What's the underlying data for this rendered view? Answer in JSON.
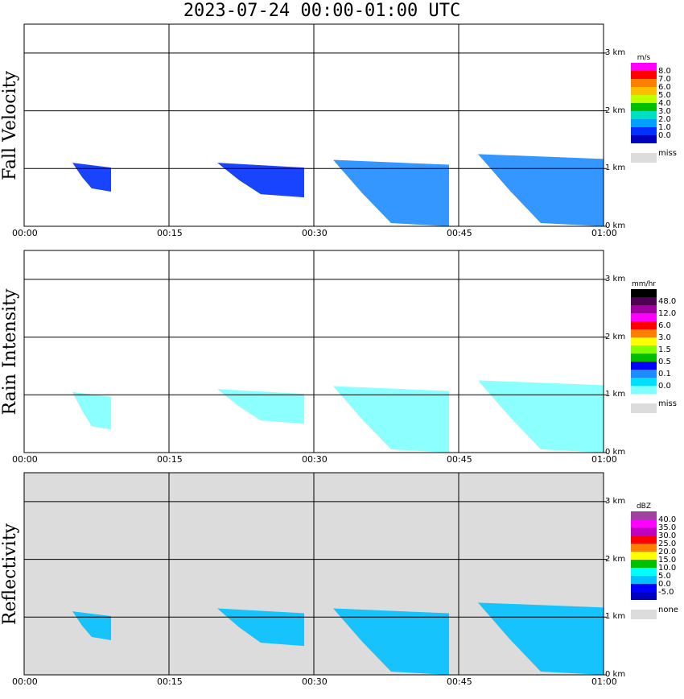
{
  "title": "2023-07-24   00:00-01:00 UTC",
  "chart_data": [
    {
      "type": "heatmap",
      "ylabel": "Fall Velocity",
      "x_ticks": [
        "00:00",
        "00:15",
        "00:30",
        "00:45",
        "01:00"
      ],
      "y_ticks": [
        "0 km",
        "1 km",
        "2 km",
        "3 km"
      ],
      "ylim_km": [
        0,
        3.5
      ],
      "grid": true,
      "background": "#ffffff",
      "legend": {
        "title": "m/s",
        "labels": [
          "8.0",
          "7.0",
          "6.0",
          "5.0",
          "4.0",
          "3.0",
          "2.0",
          "1.0",
          "0.0"
        ],
        "colors": [
          "#ff00ff",
          "#ff0000",
          "#ff7f00",
          "#ffbf00",
          "#bfff00",
          "#00bf00",
          "#00dfbf",
          "#00a0ff",
          "#0030ff",
          "#0000bf"
        ],
        "miss_label": "miss",
        "miss_color": "#dcdcdc"
      },
      "echoes": [
        {
          "t0": "00:05",
          "t1": "00:09",
          "top_km": 1.1,
          "bottom_km": 0.6,
          "color": "#0030ff"
        },
        {
          "t0": "00:20",
          "t1": "00:29",
          "top_km": 1.1,
          "bottom_km": 0.5,
          "color": "#0030ff"
        },
        {
          "t0": "00:32",
          "t1": "00:44",
          "top_km": 1.15,
          "bottom_km": 0.0,
          "color": "#1e8cff"
        },
        {
          "t0": "00:47",
          "t1": "01:00",
          "top_km": 1.25,
          "bottom_km": 0.0,
          "color": "#1e8cff"
        }
      ]
    },
    {
      "type": "heatmap",
      "ylabel": "Rain Intensity",
      "x_ticks": [
        "00:00",
        "00:15",
        "00:30",
        "00:45",
        "01:00"
      ],
      "y_ticks": [
        "0 km",
        "1 km",
        "2 km",
        "3 km"
      ],
      "ylim_km": [
        0,
        3.5
      ],
      "grid": true,
      "background": "#ffffff",
      "legend": {
        "title": "mm/hr",
        "labels": [
          "48.0",
          "12.0",
          "6.0",
          "3.0",
          "1.5",
          "0.5",
          "0.1",
          "0.0"
        ],
        "colors": [
          "#000000",
          "#500050",
          "#a000a0",
          "#ff00ff",
          "#ff0000",
          "#ff7f00",
          "#ffff00",
          "#7fff00",
          "#00bf00",
          "#0000ff",
          "#1e8cff",
          "#00dfff",
          "#7fffff"
        ],
        "miss_label": "miss",
        "miss_color": "#dcdcdc"
      },
      "echoes": [
        {
          "t0": "00:05",
          "t1": "00:09",
          "top_km": 1.05,
          "bottom_km": 0.4,
          "color": "#7fffff"
        },
        {
          "t0": "00:20",
          "t1": "00:29",
          "top_km": 1.1,
          "bottom_km": 0.5,
          "color": "#7fffff"
        },
        {
          "t0": "00:32",
          "t1": "00:44",
          "top_km": 1.15,
          "bottom_km": 0.0,
          "color": "#7fffff"
        },
        {
          "t0": "00:47",
          "t1": "01:00",
          "top_km": 1.25,
          "bottom_km": 0.0,
          "color": "#7fffff"
        }
      ]
    },
    {
      "type": "heatmap",
      "ylabel": "Reflectivity",
      "x_ticks": [
        "00:00",
        "00:15",
        "00:30",
        "00:45",
        "01:00"
      ],
      "y_ticks": [
        "0 km",
        "1 km",
        "2 km",
        "3 km"
      ],
      "ylim_km": [
        0,
        3.5
      ],
      "grid": true,
      "background": "#dcdcdc",
      "legend": {
        "title": "dBZ",
        "labels": [
          "40.0",
          "35.0",
          "30.0",
          "25.0",
          "20.0",
          "15.0",
          "10.0",
          "5.0",
          "0.0",
          "-5.0"
        ],
        "colors": [
          "#a040a0",
          "#ff00ff",
          "#c000c0",
          "#ff0000",
          "#ff7f00",
          "#ffff00",
          "#00bf00",
          "#00ffff",
          "#00c0ff",
          "#0000ff",
          "#0000bf"
        ],
        "miss_label": "none",
        "miss_color": "#dcdcdc"
      },
      "echoes": [
        {
          "t0": "00:05",
          "t1": "00:09",
          "top_km": 1.1,
          "bottom_km": 0.6,
          "color": "#00c0ff"
        },
        {
          "t0": "00:20",
          "t1": "00:29",
          "top_km": 1.15,
          "bottom_km": 0.5,
          "color": "#00c0ff"
        },
        {
          "t0": "00:32",
          "t1": "00:44",
          "top_km": 1.15,
          "bottom_km": 0.0,
          "color": "#00c0ff"
        },
        {
          "t0": "00:47",
          "t1": "01:00",
          "top_km": 1.25,
          "bottom_km": 0.0,
          "color": "#00c0ff"
        }
      ]
    }
  ]
}
